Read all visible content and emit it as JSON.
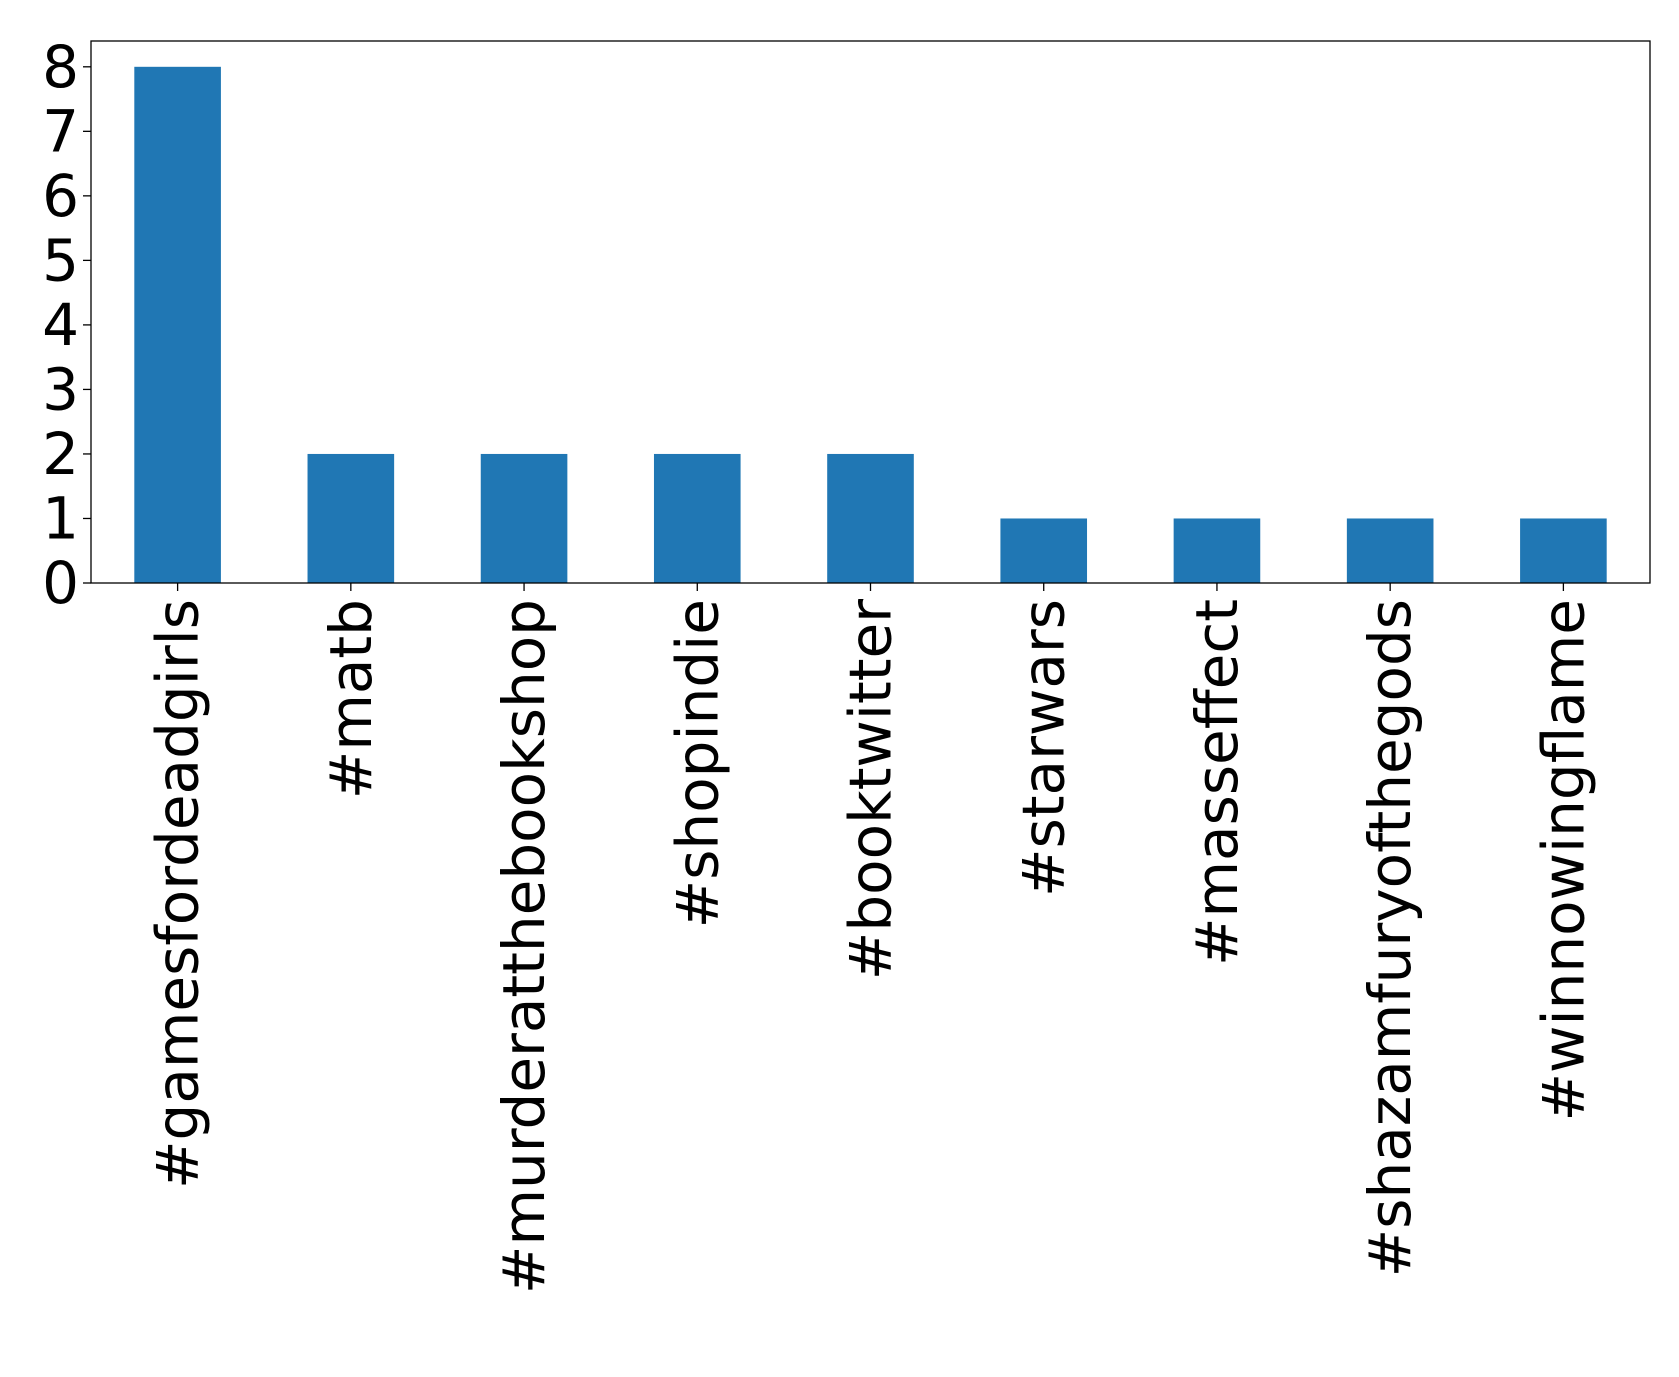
{
  "chart_data": {
    "type": "bar",
    "categories": [
      "#gamesfordeadgirls",
      "#matb",
      "#murderatthebookshop",
      "#shopindie",
      "#booktwitter",
      "#starwars",
      "#masseffect",
      "#shazamfuryofthegods",
      "#winnowingflame"
    ],
    "values": [
      8,
      2,
      2,
      2,
      2,
      1,
      1,
      1,
      1
    ],
    "title": "",
    "xlabel": "",
    "ylabel": "",
    "ylim": [
      0,
      8.4
    ],
    "yticks": [
      0,
      1,
      2,
      3,
      4,
      5,
      6,
      7,
      8
    ],
    "grid": false,
    "legend": "none",
    "bar_color": "#2077b4"
  }
}
